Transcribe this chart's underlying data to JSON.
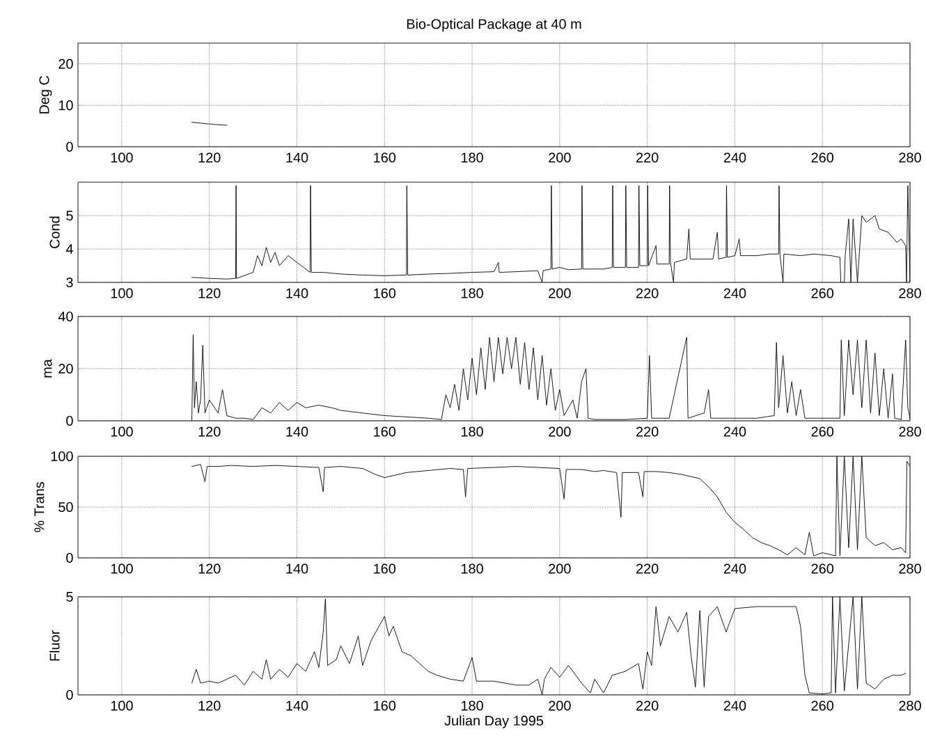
{
  "chart_data": [
    {
      "type": "line",
      "title": "Bio-Optical Package at 40 m",
      "ylabel": "Deg C",
      "xlim": [
        90,
        280
      ],
      "xticks": [
        100,
        120,
        140,
        160,
        180,
        200,
        220,
        240,
        260,
        280
      ],
      "ylim": [
        0,
        25
      ],
      "yticks": [
        0,
        10,
        20
      ],
      "grid": true,
      "color": "#000000",
      "x": [
        116,
        118,
        120,
        122,
        124
      ],
      "values": [
        5.9,
        5.7,
        5.5,
        5.3,
        5.2
      ]
    },
    {
      "type": "line",
      "ylabel": "Cond",
      "xlim": [
        90,
        280
      ],
      "xticks": [
        100,
        120,
        140,
        160,
        180,
        200,
        220,
        240,
        260,
        280
      ],
      "ylim": [
        3,
        6
      ],
      "yticks": [
        3,
        4,
        5
      ],
      "grid": true,
      "color": "#000000",
      "x": [
        116,
        120,
        124,
        126,
        126.1,
        126.2,
        130,
        131,
        132,
        133,
        134,
        135,
        136,
        138,
        140,
        142,
        143,
        143.1,
        143.3,
        146,
        150,
        155,
        160,
        165,
        165.1,
        165.3,
        170,
        175,
        180,
        185,
        186,
        186.2,
        190,
        195,
        196,
        196.2,
        198,
        198.1,
        198.3,
        200,
        202,
        205,
        205.1,
        205.3,
        210,
        212,
        212.1,
        212.3,
        215,
        215.1,
        215.3,
        218,
        218.1,
        218.3,
        220,
        220.1,
        220.3,
        222,
        222.2,
        225,
        225.1,
        225.3,
        226,
        226.2,
        229,
        229.5,
        229.8,
        232,
        235,
        236,
        236.3,
        238,
        238.1,
        238.3,
        240,
        241,
        241.3,
        245,
        248,
        250,
        250.1,
        250.3,
        251,
        251.2,
        255,
        258,
        262,
        264,
        264.2,
        265,
        265.2,
        266,
        266.5,
        267,
        268,
        269,
        270,
        272,
        273,
        275,
        277,
        278,
        279,
        279.2,
        279.5,
        280
      ],
      "values": [
        3.15,
        3.12,
        3.1,
        3.12,
        5.9,
        3.12,
        3.3,
        3.8,
        3.5,
        4.05,
        3.6,
        3.9,
        3.5,
        3.8,
        3.6,
        3.4,
        3.3,
        5.9,
        3.3,
        3.3,
        3.25,
        3.22,
        3.2,
        3.22,
        5.9,
        3.22,
        3.25,
        3.27,
        3.3,
        3.32,
        3.6,
        3.3,
        3.32,
        3.35,
        3.0,
        3.35,
        3.4,
        5.9,
        3.4,
        3.45,
        3.38,
        3.4,
        5.9,
        3.4,
        3.4,
        3.45,
        5.9,
        3.45,
        3.45,
        5.9,
        3.45,
        3.45,
        5.9,
        3.5,
        3.5,
        5.9,
        3.5,
        4.1,
        3.55,
        3.55,
        5.9,
        3.6,
        3.0,
        3.6,
        3.7,
        4.6,
        3.7,
        3.7,
        3.7,
        4.5,
        3.7,
        3.75,
        5.9,
        3.75,
        3.8,
        4.3,
        3.8,
        3.8,
        3.85,
        3.85,
        5.9,
        3.85,
        3.0,
        3.85,
        3.8,
        3.85,
        3.8,
        3.75,
        3.0,
        3.0,
        3.8,
        4.9,
        3.0,
        4.9,
        3.0,
        5.0,
        4.8,
        5.0,
        4.6,
        4.5,
        4.2,
        4.3,
        4.1,
        3.0,
        5.9,
        3.0
      ]
    },
    {
      "type": "line",
      "ylabel": "ma",
      "xlim": [
        90,
        280
      ],
      "xticks": [
        100,
        120,
        140,
        160,
        180,
        200,
        220,
        240,
        260,
        280
      ],
      "ylim": [
        0,
        40
      ],
      "yticks": [
        0,
        20,
        40
      ],
      "grid": true,
      "color": "#000000",
      "x": [
        116,
        116.3,
        116.6,
        117,
        117.5,
        118,
        118.5,
        119,
        120,
        122,
        123,
        124,
        126,
        128,
        130,
        132,
        134,
        136,
        138,
        140,
        142,
        145,
        148,
        150,
        155,
        160,
        165,
        170,
        173,
        174,
        175,
        176,
        177,
        178,
        179,
        180,
        181,
        182,
        183,
        184,
        185,
        186,
        187,
        188,
        189,
        190,
        191,
        192,
        193,
        194,
        195,
        196,
        197,
        198,
        199,
        200,
        201,
        203,
        204,
        205,
        206,
        206.5,
        208,
        215,
        220,
        220.5,
        221,
        225,
        229,
        229.3,
        233,
        234,
        234.5,
        240,
        245,
        249,
        249.5,
        250,
        251,
        252,
        253,
        254,
        255,
        256,
        260,
        264,
        264.3,
        265,
        266,
        267,
        268,
        269,
        270,
        271,
        272,
        273,
        274,
        275,
        276,
        276.5,
        278,
        279,
        279.5,
        280
      ],
      "values": [
        0,
        33,
        5,
        15,
        3,
        8,
        29,
        3,
        8,
        3,
        12,
        2,
        1,
        1,
        0.5,
        5,
        3,
        7,
        4,
        7,
        5,
        6,
        5,
        4,
        3,
        2,
        1.5,
        1,
        0.5,
        10,
        5,
        14,
        4,
        20,
        8,
        24,
        10,
        28,
        12,
        32,
        15,
        32,
        18,
        32,
        20,
        32,
        14,
        30,
        12,
        28,
        8,
        25,
        6,
        20,
        4,
        12,
        2,
        8,
        1,
        15,
        20,
        1,
        0.5,
        0.5,
        1,
        25,
        1,
        1,
        32,
        1,
        3,
        12,
        1,
        1,
        1,
        2,
        30,
        5,
        25,
        3,
        15,
        2,
        12,
        1,
        1,
        1,
        31,
        2,
        31,
        10,
        31,
        5,
        31,
        3,
        26,
        2,
        20,
        1,
        18,
        1,
        0.5,
        31,
        5,
        1
      ]
    },
    {
      "type": "line",
      "ylabel": "% Trans",
      "xlim": [
        90,
        280
      ],
      "xticks": [
        100,
        120,
        140,
        160,
        180,
        200,
        220,
        240,
        260,
        280
      ],
      "ylim": [
        0,
        100
      ],
      "yticks": [
        0,
        50,
        100
      ],
      "grid": true,
      "color": "#000000",
      "x": [
        116,
        118,
        119,
        119.5,
        122,
        125,
        130,
        135,
        140,
        145,
        146,
        146.3,
        150,
        155,
        158,
        160,
        162,
        165,
        170,
        175,
        178,
        178.5,
        179,
        185,
        190,
        195,
        200,
        201,
        201.5,
        205,
        208,
        210,
        213,
        214,
        214.3,
        218,
        219,
        219.3,
        222,
        225,
        228,
        232,
        234,
        236,
        238,
        240,
        242,
        244,
        246,
        248,
        250,
        252,
        254,
        256,
        257,
        258,
        260,
        263,
        263.3,
        264,
        265,
        266,
        267,
        268,
        269,
        270,
        272,
        274,
        276,
        278,
        279,
        279.3,
        280
      ],
      "values": [
        90,
        92,
        75,
        90,
        90,
        91,
        90,
        91,
        90,
        89,
        65,
        89,
        90,
        88,
        82,
        79,
        81,
        84,
        86,
        88,
        87,
        60,
        88,
        89,
        90,
        89,
        88,
        58,
        87,
        87,
        85,
        86,
        84,
        40,
        84,
        84,
        60,
        85,
        85,
        84,
        82,
        78,
        70,
        60,
        45,
        35,
        28,
        20,
        15,
        12,
        8,
        3,
        10,
        3,
        25,
        2,
        5,
        2,
        100,
        2,
        100,
        10,
        100,
        8,
        100,
        20,
        12,
        15,
        8,
        10,
        5,
        95,
        90
      ]
    },
    {
      "type": "line",
      "ylabel": "Fluor",
      "xlabel": "Julian Day 1995",
      "xlim": [
        90,
        280
      ],
      "xticks": [
        100,
        120,
        140,
        160,
        180,
        200,
        220,
        240,
        260,
        280
      ],
      "ylim": [
        0,
        5
      ],
      "yticks": [
        0,
        5
      ],
      "grid": true,
      "color": "#000000",
      "x": [
        116,
        117,
        118,
        120,
        122,
        124,
        126,
        128,
        130,
        132,
        133,
        134,
        136,
        138,
        140,
        142,
        144,
        145,
        146,
        146.5,
        147,
        149,
        150,
        152,
        154,
        155,
        157,
        159,
        160,
        161,
        162,
        164,
        166,
        168,
        170,
        172,
        175,
        178,
        180,
        181,
        185,
        190,
        193,
        195,
        196,
        196.5,
        198,
        200,
        202,
        205,
        207,
        208,
        210,
        212,
        215,
        218,
        219,
        220,
        221,
        222,
        223,
        225,
        227,
        229,
        230,
        231,
        232,
        233,
        234,
        236,
        238,
        240,
        245,
        250,
        254,
        255,
        256,
        257,
        260,
        262,
        262.3,
        263,
        264,
        265,
        267,
        268,
        269,
        270,
        272,
        274,
        276,
        278,
        279
      ],
      "values": [
        0.6,
        1.3,
        0.6,
        0.7,
        0.6,
        0.8,
        1.0,
        0.5,
        1.2,
        0.8,
        1.8,
        0.8,
        1.3,
        0.9,
        1.6,
        1.2,
        2.2,
        1.4,
        3.2,
        4.9,
        1.5,
        1.8,
        2.5,
        1.6,
        3.0,
        1.5,
        2.8,
        3.6,
        4.0,
        3.0,
        3.5,
        2.2,
        2.0,
        1.6,
        1.2,
        1.0,
        0.8,
        0.7,
        1.9,
        0.7,
        0.7,
        0.5,
        0.5,
        0.8,
        0,
        0.8,
        1.4,
        0.9,
        1.5,
        0.6,
        0.1,
        0.8,
        0.1,
        1.0,
        1.2,
        1.6,
        0.3,
        2.2,
        1.5,
        4.5,
        2.5,
        4.0,
        3.2,
        4.2,
        2.0,
        0.4,
        4.3,
        0.4,
        4.0,
        4.5,
        3.2,
        4.4,
        4.5,
        4.5,
        4.5,
        3.5,
        1.0,
        0.1,
        0.05,
        0.1,
        5,
        0.1,
        5,
        0.2,
        5,
        0.3,
        5,
        0.6,
        0.3,
        0.8,
        1.0,
        1.0,
        1.1
      ]
    }
  ]
}
